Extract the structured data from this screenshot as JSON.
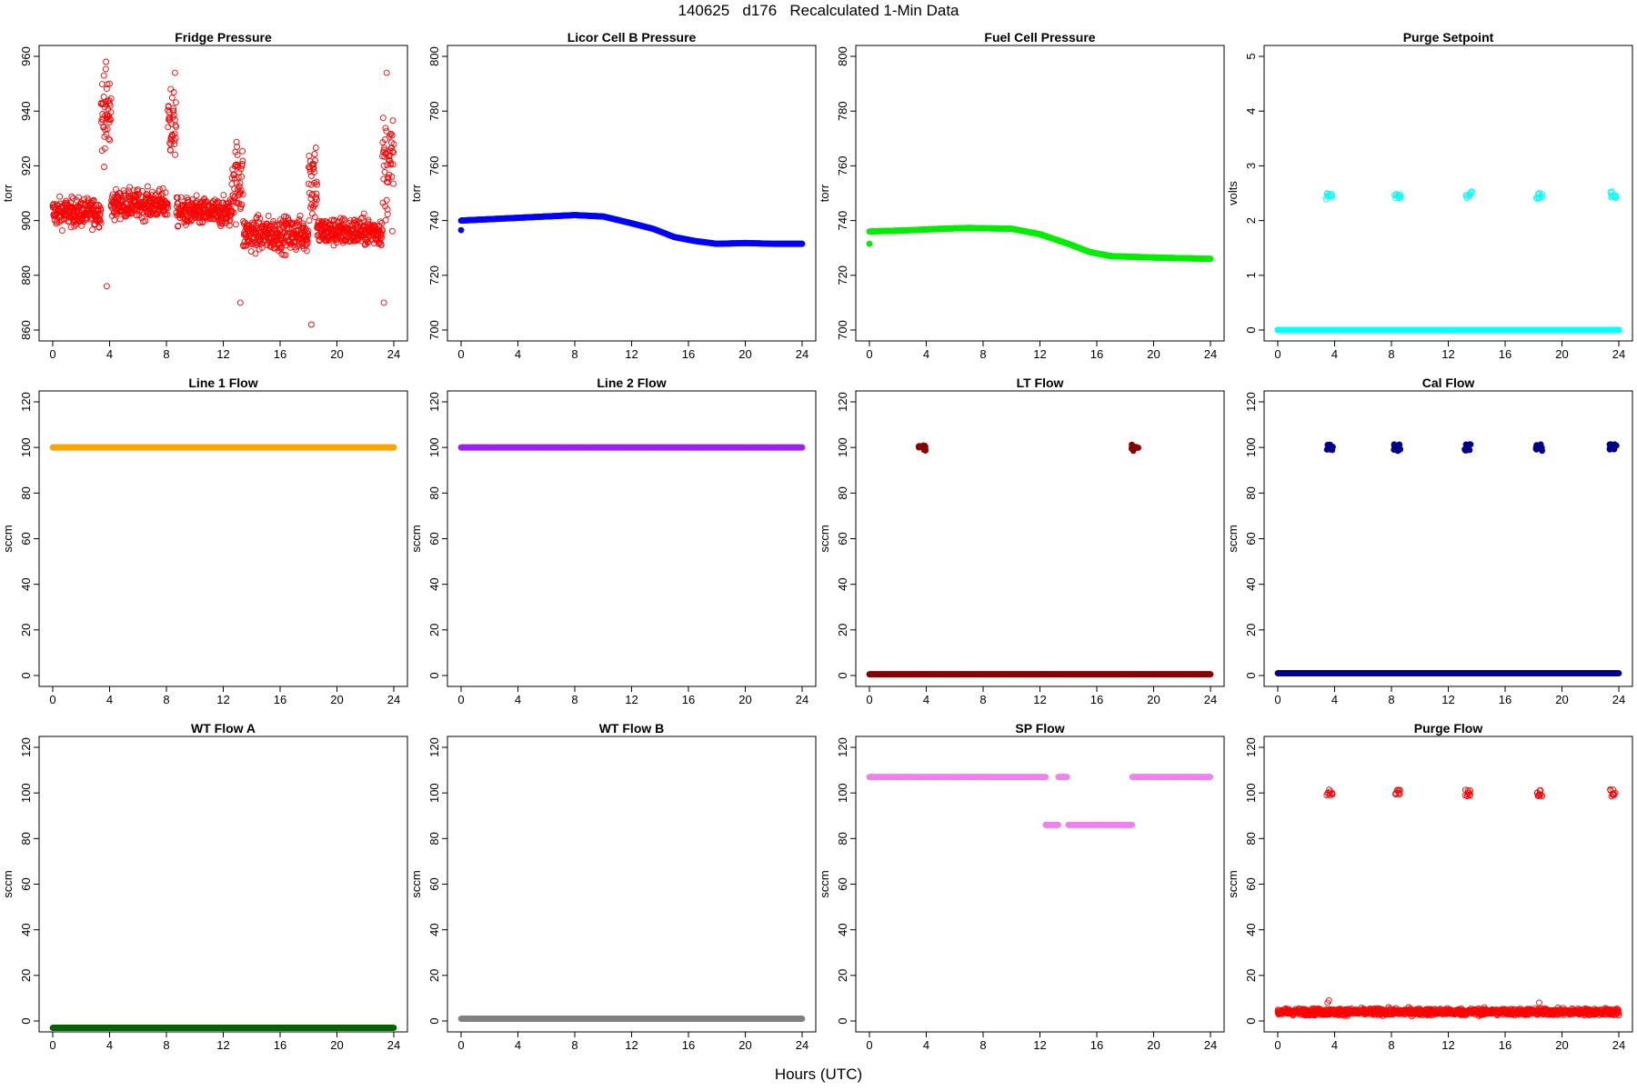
{
  "figure_title": "140625   d176   Recalculated 1-Min Data",
  "x_axis_label": "Hours (UTC)",
  "chart_data": [
    {
      "type": "scatter",
      "title": "Fridge Pressure",
      "ylabel": "torr",
      "color": "#ff0000",
      "filled": false,
      "xlim": [
        0,
        24
      ],
      "ylim": [
        860,
        960
      ],
      "xticks": [
        0,
        4,
        8,
        12,
        16,
        20,
        24
      ],
      "yticks": [
        860,
        880,
        900,
        920,
        940,
        960
      ],
      "segments": [
        {
          "x": [
            0,
            3.4
          ],
          "y": 903,
          "noise": 5
        },
        {
          "x": [
            3.4,
            4.1
          ],
          "y": 938,
          "noise": 14
        },
        {
          "x": [
            4.1,
            8.1
          ],
          "y": 906,
          "noise": 5
        },
        {
          "x": [
            8.1,
            8.7
          ],
          "y": 935,
          "noise": 12
        },
        {
          "x": [
            8.7,
            12.6
          ],
          "y": 903,
          "noise": 5
        },
        {
          "x": [
            12.6,
            13.4
          ],
          "y": 915,
          "noise": 14
        },
        {
          "x": [
            13.4,
            18
          ],
          "y": 895,
          "noise": 6
        },
        {
          "x": [
            18,
            18.6
          ],
          "y": 915,
          "noise": 16
        },
        {
          "x": [
            18.6,
            23.2
          ],
          "y": 896,
          "noise": 5
        },
        {
          "x": [
            23.2,
            24
          ],
          "y": 920,
          "noise": 18
        }
      ],
      "points": [
        [
          3.75,
          958
        ],
        [
          3.6,
          953
        ],
        [
          8.6,
          954
        ],
        [
          13.2,
          870
        ],
        [
          18.2,
          862
        ],
        [
          3.8,
          876
        ],
        [
          23.5,
          954
        ],
        [
          23.3,
          870
        ],
        [
          4.0,
          950
        ],
        [
          8.3,
          948
        ]
      ]
    },
    {
      "type": "scatter",
      "title": "Licor Cell B Pressure",
      "ylabel": "torr",
      "color": "#0000ff",
      "filled": true,
      "xlim": [
        0,
        24
      ],
      "ylim": [
        700,
        800
      ],
      "xticks": [
        0,
        4,
        8,
        12,
        16,
        20,
        24
      ],
      "yticks": [
        700,
        720,
        740,
        760,
        780,
        800
      ],
      "curve": [
        [
          0,
          740
        ],
        [
          4,
          741
        ],
        [
          8,
          742
        ],
        [
          10,
          741.5
        ],
        [
          12,
          739
        ],
        [
          13.5,
          737
        ],
        [
          15,
          734
        ],
        [
          16.5,
          732.5
        ],
        [
          18,
          731.5
        ],
        [
          20,
          731.8
        ],
        [
          22,
          731.5
        ],
        [
          24,
          731.5
        ]
      ],
      "points": [
        [
          0,
          736.5
        ]
      ]
    },
    {
      "type": "scatter",
      "title": "Fuel Cell Pressure",
      "ylabel": "torr",
      "color": "#00ee00",
      "filled": true,
      "xlim": [
        0,
        24
      ],
      "ylim": [
        700,
        800
      ],
      "xticks": [
        0,
        4,
        8,
        12,
        16,
        20,
        24
      ],
      "yticks": [
        700,
        720,
        740,
        760,
        780,
        800
      ],
      "curve": [
        [
          0,
          736
        ],
        [
          3,
          736.5
        ],
        [
          5,
          737
        ],
        [
          7,
          737.3
        ],
        [
          10,
          737
        ],
        [
          12,
          735
        ],
        [
          14,
          731.5
        ],
        [
          15.5,
          728.5
        ],
        [
          17,
          727
        ],
        [
          20,
          726.5
        ],
        [
          24,
          726
        ]
      ],
      "points": [
        [
          0,
          731.5
        ]
      ]
    },
    {
      "type": "scatter",
      "title": "Purge Setpoint",
      "ylabel": "volts",
      "color": "#00ffff",
      "filled": false,
      "xlim": [
        0,
        24
      ],
      "ylim": [
        0,
        5
      ],
      "xticks": [
        0,
        4,
        8,
        12,
        16,
        20,
        24
      ],
      "yticks": [
        0,
        1,
        2,
        3,
        4,
        5
      ],
      "curve": [
        [
          0,
          0
        ],
        [
          24,
          0
        ]
      ],
      "groups": [
        {
          "x": 3.6,
          "y": 2.45
        },
        {
          "x": 8.4,
          "y": 2.45
        },
        {
          "x": 13.4,
          "y": 2.47
        },
        {
          "x": 18.4,
          "y": 2.45
        },
        {
          "x": 23.6,
          "y": 2.47
        }
      ]
    },
    {
      "type": "scatter",
      "title": "Line 1 Flow",
      "ylabel": "sccm",
      "color": "#ffa500",
      "filled": true,
      "xlim": [
        0,
        24
      ],
      "ylim": [
        0,
        120
      ],
      "xticks": [
        0,
        4,
        8,
        12,
        16,
        20,
        24
      ],
      "yticks": [
        0,
        20,
        40,
        60,
        80,
        100,
        120
      ],
      "curve": [
        [
          0,
          100
        ],
        [
          24,
          100
        ]
      ]
    },
    {
      "type": "scatter",
      "title": "Line 2 Flow",
      "ylabel": "sccm",
      "color": "#a020f0",
      "filled": true,
      "xlim": [
        0,
        24
      ],
      "ylim": [
        0,
        120
      ],
      "xticks": [
        0,
        4,
        8,
        12,
        16,
        20,
        24
      ],
      "yticks": [
        0,
        20,
        40,
        60,
        80,
        100,
        120
      ],
      "curve": [
        [
          0,
          100
        ],
        [
          24,
          100
        ]
      ]
    },
    {
      "type": "scatter",
      "title": "LT Flow",
      "ylabel": "sccm",
      "color": "#8b0000",
      "filled": true,
      "xlim": [
        0,
        24
      ],
      "ylim": [
        0,
        120
      ],
      "xticks": [
        0,
        4,
        8,
        12,
        16,
        20,
        24
      ],
      "yticks": [
        0,
        20,
        40,
        60,
        80,
        100,
        120
      ],
      "curve": [
        [
          0,
          0.5
        ],
        [
          24,
          0.5
        ]
      ],
      "groups": [
        {
          "x": 3.7,
          "y": 100
        },
        {
          "x": 18.7,
          "y": 100
        }
      ]
    },
    {
      "type": "scatter",
      "title": "Cal Flow",
      "ylabel": "sccm",
      "color": "#00008b",
      "filled": true,
      "xlim": [
        0,
        24
      ],
      "ylim": [
        0,
        120
      ],
      "xticks": [
        0,
        4,
        8,
        12,
        16,
        20,
        24
      ],
      "yticks": [
        0,
        20,
        40,
        60,
        80,
        100,
        120
      ],
      "curve": [
        [
          0,
          1
        ],
        [
          24,
          1
        ]
      ],
      "groups": [
        {
          "x": 3.7,
          "y": 100
        },
        {
          "x": 8.4,
          "y": 100
        },
        {
          "x": 13.4,
          "y": 100
        },
        {
          "x": 18.4,
          "y": 100
        },
        {
          "x": 23.6,
          "y": 100
        }
      ]
    },
    {
      "type": "scatter",
      "title": "WT Flow A",
      "ylabel": "sccm",
      "color": "#006400",
      "filled": true,
      "xlim": [
        0,
        24
      ],
      "ylim": [
        0,
        120
      ],
      "xticks": [
        0,
        4,
        8,
        12,
        16,
        20,
        24
      ],
      "yticks": [
        0,
        20,
        40,
        60,
        80,
        100,
        120
      ],
      "curve": [
        [
          0,
          -3
        ],
        [
          24,
          -3
        ]
      ]
    },
    {
      "type": "scatter",
      "title": "WT Flow B",
      "ylabel": "sccm",
      "color": "#808080",
      "filled": true,
      "xlim": [
        0,
        24
      ],
      "ylim": [
        0,
        120
      ],
      "xticks": [
        0,
        4,
        8,
        12,
        16,
        20,
        24
      ],
      "yticks": [
        0,
        20,
        40,
        60,
        80,
        100,
        120
      ],
      "curve": [
        [
          0,
          1
        ],
        [
          24,
          1
        ]
      ]
    },
    {
      "type": "scatter",
      "title": "SP Flow",
      "ylabel": "sccm",
      "color": "#ee82ee",
      "filled": true,
      "xlim": [
        0,
        24
      ],
      "ylim": [
        0,
        120
      ],
      "xticks": [
        0,
        4,
        8,
        12,
        16,
        20,
        24
      ],
      "yticks": [
        0,
        20,
        40,
        60,
        80,
        100,
        120
      ],
      "lines": [
        {
          "x": [
            0,
            12.4
          ],
          "y": 107
        },
        {
          "x": 12.4,
          "x2": 13.3,
          "y": 86
        },
        {
          "x": 13.3,
          "x2": 13.9,
          "y": 107
        },
        {
          "x": 14,
          "x2": 18.5,
          "y": 86
        },
        {
          "x": 18.5,
          "x2": 24,
          "y": 107
        }
      ]
    },
    {
      "type": "scatter",
      "title": "Purge Flow",
      "ylabel": "sccm",
      "color": "#ff0000",
      "filled": false,
      "xlim": [
        0,
        24
      ],
      "ylim": [
        0,
        120
      ],
      "xticks": [
        0,
        4,
        8,
        12,
        16,
        20,
        24
      ],
      "yticks": [
        0,
        20,
        40,
        60,
        80,
        100,
        120
      ],
      "segments": [
        {
          "x": [
            0,
            24
          ],
          "y": 4,
          "noise": 1.4
        }
      ],
      "groups": [
        {
          "x": 3.6,
          "y": 100
        },
        {
          "x": 8.4,
          "y": 100
        },
        {
          "x": 13.4,
          "y": 100
        },
        {
          "x": 18.4,
          "y": 100
        },
        {
          "x": 23.6,
          "y": 100
        }
      ],
      "points": [
        [
          3.5,
          8
        ],
        [
          3.6,
          9
        ],
        [
          18.4,
          8
        ]
      ]
    }
  ]
}
